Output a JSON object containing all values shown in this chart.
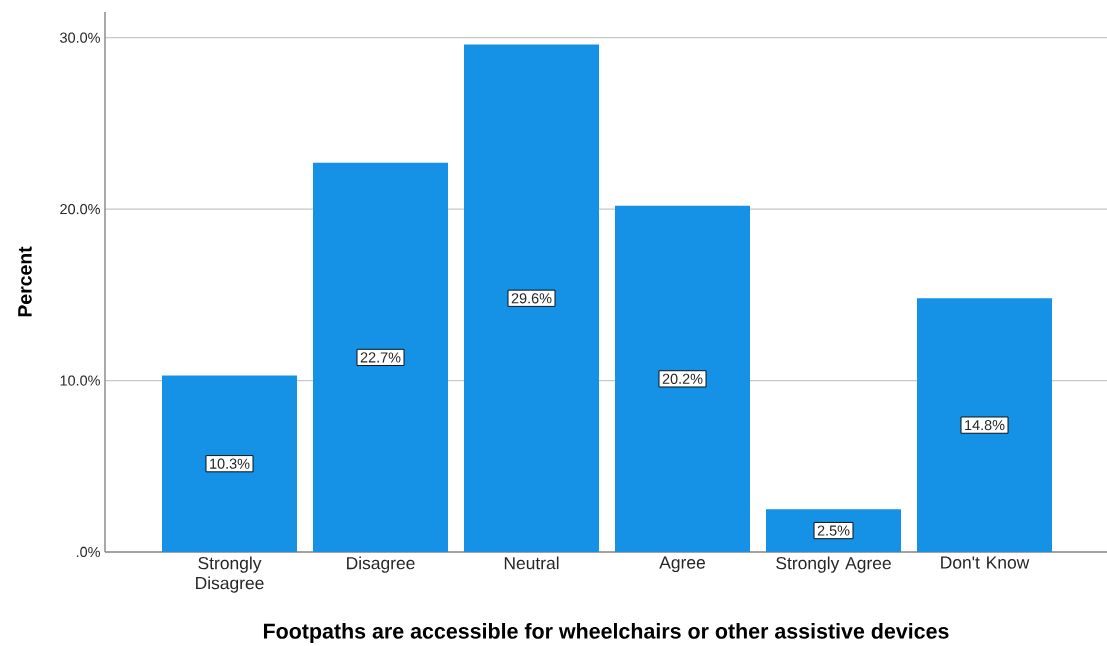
{
  "chart_data": {
    "type": "bar",
    "xlabel": "Footpaths are accessible for wheelchairs or other assistive devices",
    "ylabel": "Percent",
    "categories": [
      "Strongly Disagree",
      "Disagree",
      "Neutral",
      "Agree",
      "Strongly Agree",
      "Don't Know"
    ],
    "values": [
      10.3,
      22.7,
      29.6,
      20.2,
      2.5,
      14.8
    ],
    "value_labels": [
      "10.3%",
      "22.7%",
      "29.6%",
      "20.2%",
      "2.5%",
      "14.8%"
    ],
    "color": "#1591e5",
    "ylim": [
      0,
      31.5
    ],
    "yticks": [
      {
        "value": 0,
        "label": ".0%"
      },
      {
        "value": 10,
        "label": "10.0%"
      },
      {
        "value": 20,
        "label": "20.0%"
      },
      {
        "value": 30,
        "label": "30.0%"
      }
    ],
    "grid": "y"
  }
}
